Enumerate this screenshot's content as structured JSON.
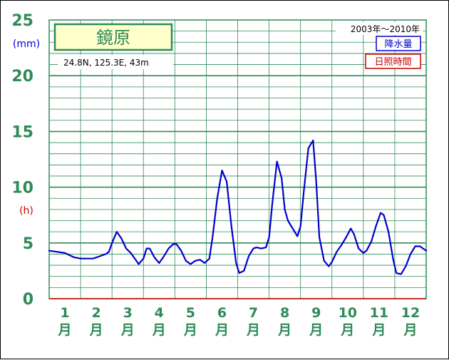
{
  "chart_data": {
    "type": "line",
    "station": "鏡原",
    "location": "24.8N,  125.3E,  43m",
    "period": "2003年〜2010年",
    "legend": [
      {
        "name": "降水量",
        "color": "#0000cc"
      },
      {
        "name": "日照時間",
        "color": "#cc0000"
      }
    ],
    "ylabel_primary": "(mm)",
    "ylabel_secondary": "(h)",
    "ylim": [
      0,
      25
    ],
    "yticks": [
      "0",
      "5",
      "10",
      "15",
      "20",
      "25"
    ],
    "x_categories": [
      {
        "num": "1",
        "unit": "月"
      },
      {
        "num": "2",
        "unit": "月"
      },
      {
        "num": "3",
        "unit": "月"
      },
      {
        "num": "4",
        "unit": "月"
      },
      {
        "num": "5",
        "unit": "月"
      },
      {
        "num": "6",
        "unit": "月"
      },
      {
        "num": "7",
        "unit": "月"
      },
      {
        "num": "8",
        "unit": "月"
      },
      {
        "num": "9",
        "unit": "月"
      },
      {
        "num": "10",
        "unit": "月"
      },
      {
        "num": "11",
        "unit": "月"
      },
      {
        "num": "12",
        "unit": "月"
      }
    ],
    "grid": true,
    "series": [
      {
        "name": "降水量",
        "color": "#0000cc",
        "x_month": [
          0.0,
          0.5,
          0.8,
          1.0,
          1.2,
          1.4,
          1.6,
          1.7,
          1.8,
          1.9,
          2.0,
          2.15,
          2.3,
          2.45,
          2.6,
          2.7,
          2.85,
          3.0,
          3.1,
          3.2,
          3.35,
          3.5,
          3.65,
          3.8,
          3.95,
          4.05,
          4.2,
          4.35,
          4.5,
          4.65,
          4.8,
          4.95,
          5.1,
          5.2,
          5.35,
          5.5,
          5.65,
          5.8,
          5.95,
          6.05,
          6.2,
          6.35,
          6.5,
          6.6,
          6.75,
          6.9,
          7.0,
          7.1,
          7.25,
          7.4,
          7.5,
          7.6,
          7.75,
          7.9,
          8.0,
          8.1,
          8.25,
          8.4,
          8.5,
          8.6,
          8.75,
          8.9,
          9.0,
          9.15,
          9.3,
          9.45,
          9.6,
          9.7,
          9.85,
          10.0,
          10.1,
          10.25,
          10.4,
          10.55,
          10.65,
          10.8,
          10.95,
          11.05,
          11.2,
          11.35,
          11.5,
          11.65,
          11.8,
          11.9,
          12.0
        ],
        "values": [
          4.3,
          4.1,
          3.7,
          3.6,
          3.6,
          3.6,
          3.8,
          3.9,
          4.0,
          4.2,
          5.0,
          6.0,
          5.4,
          4.5,
          4.1,
          3.7,
          3.1,
          3.6,
          4.5,
          4.5,
          3.7,
          3.2,
          3.8,
          4.5,
          4.9,
          4.9,
          4.3,
          3.4,
          3.1,
          3.4,
          3.5,
          3.2,
          3.6,
          5.5,
          9.0,
          11.5,
          10.5,
          6.5,
          3.2,
          2.3,
          2.5,
          3.8,
          4.5,
          4.6,
          4.5,
          4.6,
          5.5,
          8.5,
          12.3,
          10.8,
          8.0,
          7.0,
          6.3,
          5.6,
          6.5,
          9.5,
          13.5,
          14.2,
          10.5,
          5.5,
          3.4,
          2.9,
          3.3,
          4.2,
          4.8,
          5.5,
          6.3,
          5.8,
          4.5,
          4.1,
          4.3,
          5.1,
          6.5,
          7.7,
          7.5,
          6.0,
          3.5,
          2.3,
          2.2,
          2.9,
          4.0,
          4.7,
          4.7,
          4.5,
          4.3
        ]
      }
    ]
  }
}
